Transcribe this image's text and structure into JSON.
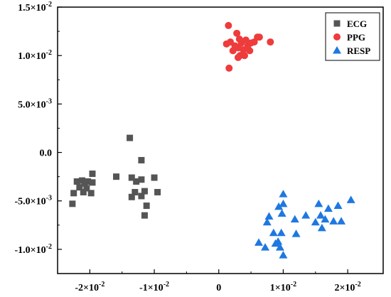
{
  "chart_data": {
    "type": "scatter",
    "title": "",
    "xlabel": "",
    "ylabel": "",
    "xlim": [
      -0.025,
      0.0255
    ],
    "ylim": [
      -0.0125,
      0.015
    ],
    "grid": false,
    "legend_position": "top-right",
    "x_ticks": [
      {
        "value": -0.02,
        "base": "-2×10",
        "exp": "-2"
      },
      {
        "value": -0.01,
        "base": "-1×10",
        "exp": "-2"
      },
      {
        "value": 0,
        "base": "0",
        "exp": ""
      },
      {
        "value": 0.01,
        "base": "1×10",
        "exp": "-2"
      },
      {
        "value": 0.02,
        "base": "2×10",
        "exp": "-2"
      }
    ],
    "y_ticks": [
      {
        "value": -0.01,
        "base": "-1.0×10",
        "exp": "-2"
      },
      {
        "value": -0.005,
        "base": "-5.0×10",
        "exp": "-3"
      },
      {
        "value": 0,
        "base": "0.0",
        "exp": ""
      },
      {
        "value": 0.005,
        "base": "5.0×10",
        "exp": "-3"
      },
      {
        "value": 0.01,
        "base": "1.0×10",
        "exp": "-2"
      },
      {
        "value": 0.015,
        "base": "1.5×10",
        "exp": "-2"
      }
    ],
    "series": [
      {
        "name": "ECG",
        "marker": "square",
        "color": "#555555",
        "points": [
          [
            -0.0227,
            -0.0053
          ],
          [
            -0.0225,
            -0.0042
          ],
          [
            -0.022,
            -0.003
          ],
          [
            -0.0216,
            -0.0036
          ],
          [
            -0.0212,
            -0.0029
          ],
          [
            -0.021,
            -0.0041
          ],
          [
            -0.0208,
            -0.0032
          ],
          [
            -0.0205,
            -0.0037
          ],
          [
            -0.0203,
            -0.003
          ],
          [
            -0.0198,
            -0.0042
          ],
          [
            -0.0196,
            -0.0022
          ],
          [
            -0.0196,
            -0.0031
          ],
          [
            -0.0159,
            -0.0025
          ],
          [
            -0.0138,
            0.0015
          ],
          [
            -0.0135,
            -0.0026
          ],
          [
            -0.0135,
            -0.0046
          ],
          [
            -0.013,
            -0.0041
          ],
          [
            -0.0128,
            -0.003
          ],
          [
            -0.012,
            -0.0008
          ],
          [
            -0.012,
            -0.0028
          ],
          [
            -0.0115,
            -0.004
          ],
          [
            -0.0115,
            -0.0065
          ],
          [
            -0.0112,
            -0.0055
          ],
          [
            -0.01,
            -0.0026
          ],
          [
            -0.0095,
            -0.0041
          ],
          [
            -0.012,
            -0.0045
          ]
        ]
      },
      {
        "name": "PPG",
        "marker": "circle",
        "color": "#ee3b3b",
        "points": [
          [
            0.0012,
            0.0112
          ],
          [
            0.0015,
            0.0131
          ],
          [
            0.0016,
            0.0087
          ],
          [
            0.0018,
            0.0114
          ],
          [
            0.0022,
            0.0105
          ],
          [
            0.0025,
            0.011
          ],
          [
            0.0028,
            0.0123
          ],
          [
            0.003,
            0.0108
          ],
          [
            0.0032,
            0.0117
          ],
          [
            0.0033,
            0.01
          ],
          [
            0.0035,
            0.0113
          ],
          [
            0.0038,
            0.0106
          ],
          [
            0.004,
            0.01
          ],
          [
            0.0042,
            0.0116
          ],
          [
            0.0045,
            0.011
          ],
          [
            0.005,
            0.0113
          ],
          [
            0.0055,
            0.0114
          ],
          [
            0.006,
            0.0119
          ],
          [
            0.0063,
            0.0119
          ],
          [
            0.008,
            0.0114
          ],
          [
            0.003,
            0.0098
          ],
          [
            0.0048,
            0.0105
          ]
        ]
      },
      {
        "name": "RESP",
        "marker": "triangle",
        "color": "#1e78e0",
        "points": [
          [
            0.0062,
            -0.0093
          ],
          [
            0.0072,
            -0.0098
          ],
          [
            0.0075,
            -0.0072
          ],
          [
            0.0078,
            -0.0066
          ],
          [
            0.0085,
            -0.0083
          ],
          [
            0.0088,
            -0.0094
          ],
          [
            0.0092,
            -0.0092
          ],
          [
            0.0093,
            -0.0056
          ],
          [
            0.0095,
            -0.0098
          ],
          [
            0.0097,
            -0.0083
          ],
          [
            0.0098,
            -0.0063
          ],
          [
            0.01,
            -0.0053
          ],
          [
            0.01,
            -0.0106
          ],
          [
            0.01,
            -0.0043
          ],
          [
            0.0118,
            -0.0069
          ],
          [
            0.012,
            -0.0084
          ],
          [
            0.0135,
            -0.0065
          ],
          [
            0.015,
            -0.0072
          ],
          [
            0.0155,
            -0.0053
          ],
          [
            0.016,
            -0.0078
          ],
          [
            0.0165,
            -0.0069
          ],
          [
            0.017,
            -0.0058
          ],
          [
            0.0178,
            -0.0071
          ],
          [
            0.0185,
            -0.0055
          ],
          [
            0.019,
            -0.0071
          ],
          [
            0.0205,
            -0.0049
          ],
          [
            0.0158,
            -0.0065
          ]
        ]
      }
    ]
  }
}
